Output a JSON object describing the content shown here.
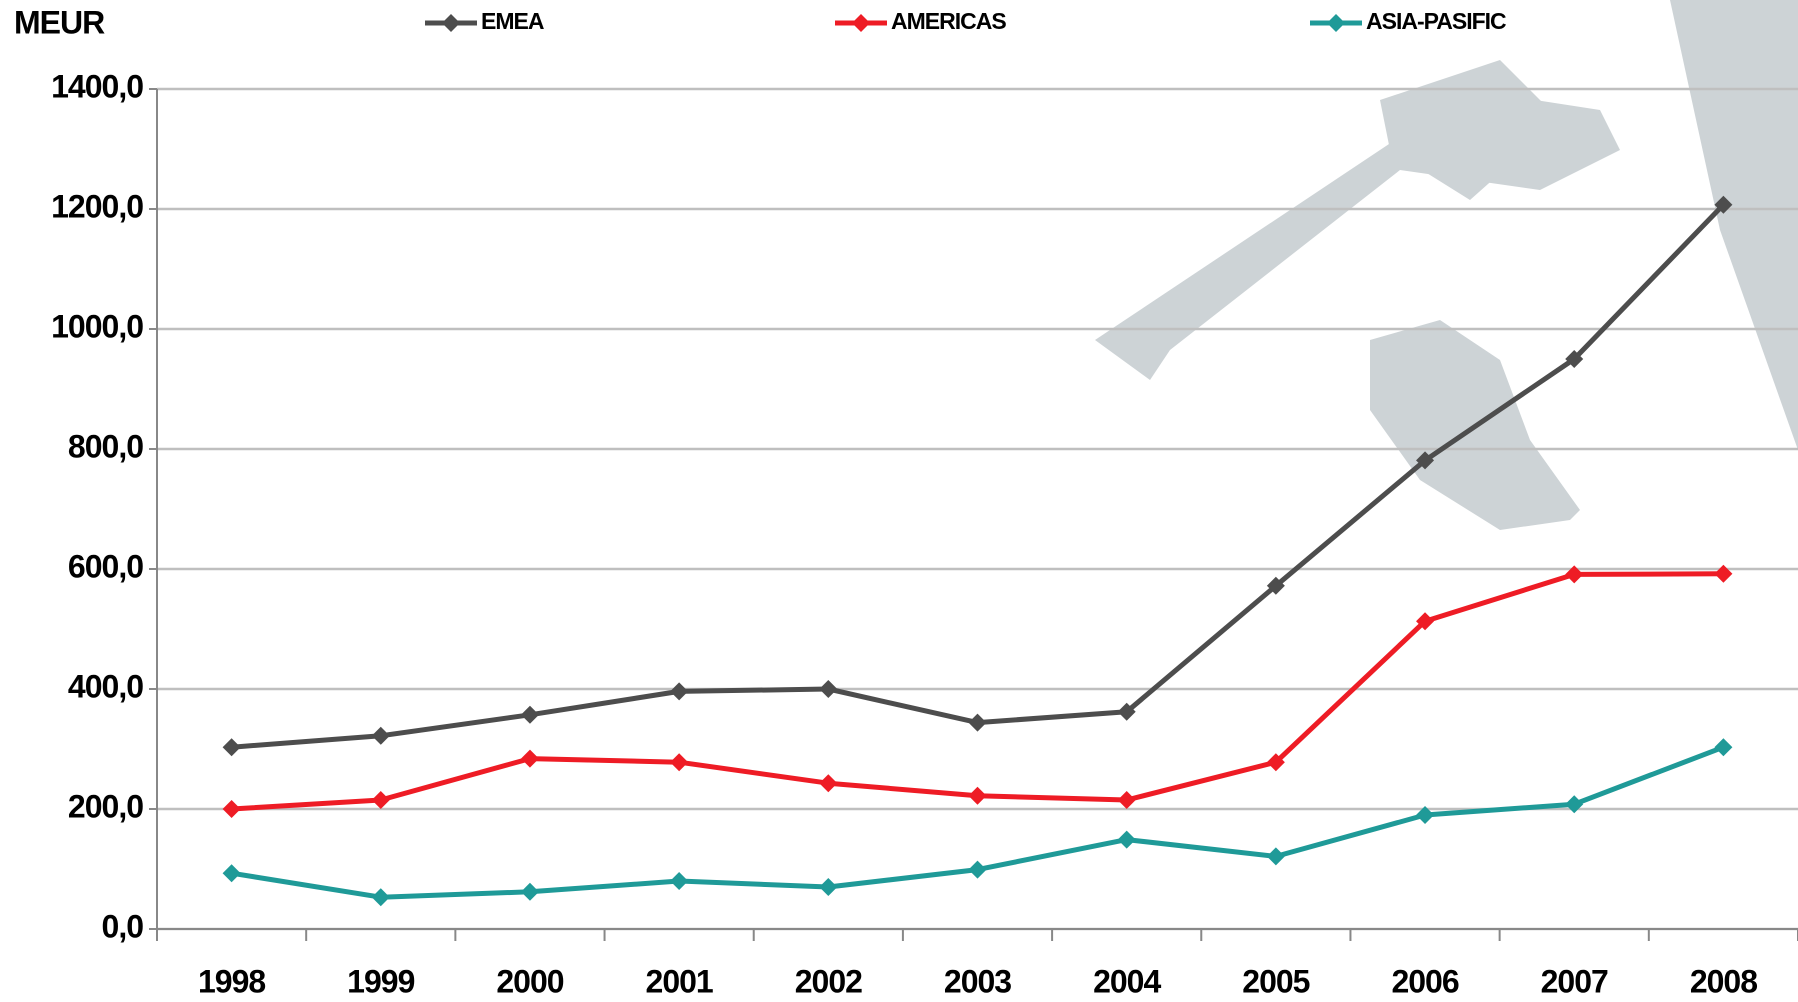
{
  "chart_data": {
    "type": "line",
    "y_label": "MEUR",
    "categories": [
      "1998",
      "1999",
      "2000",
      "2001",
      "2002",
      "2003",
      "2004",
      "2005",
      "2006",
      "2007",
      "2008"
    ],
    "series": [
      {
        "name": "EMEA",
        "color": "#4d4d4d",
        "values": [
          303,
          322,
          357,
          396,
          400,
          344,
          362,
          572,
          781,
          950,
          1207
        ]
      },
      {
        "name": "AMERICAS",
        "color": "#ee1c25",
        "values": [
          200,
          215,
          284,
          278,
          243,
          222,
          215,
          278,
          513,
          591,
          592
        ]
      },
      {
        "name": "ASIA-PASIFIC",
        "color": "#1f9a98",
        "values": [
          93,
          53,
          62,
          80,
          70,
          99,
          149,
          121,
          190,
          208,
          303
        ]
      }
    ],
    "ylim": [
      0,
      1400
    ],
    "yticks": [
      {
        "value": 0,
        "label": "0,0"
      },
      {
        "value": 200,
        "label": "200,0"
      },
      {
        "value": 400,
        "label": "400,0"
      },
      {
        "value": 600,
        "label": "600,0"
      },
      {
        "value": 800,
        "label": "800,0"
      },
      {
        "value": 1000,
        "label": "1000,0"
      },
      {
        "value": 1200,
        "label": "1200,0"
      },
      {
        "value": 1400,
        "label": "1400,0"
      }
    ],
    "grid": true,
    "legend": "top"
  }
}
